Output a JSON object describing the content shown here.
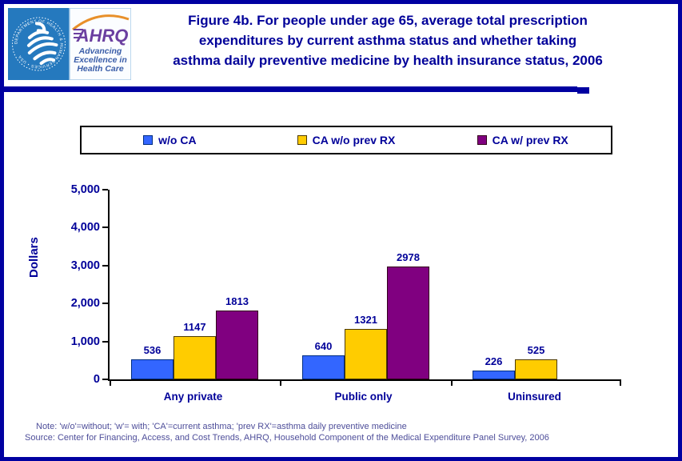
{
  "header": {
    "title_lines": [
      "Figure 4b. For people under age 65, average total prescription",
      "expenditures by current asthma status and whether taking",
      "asthma daily preventive medicine by health insurance status, 2006"
    ],
    "logo": {
      "hhs_seal_text": "DEPARTMENT OF HEALTH & HUMAN SERVICES • USA",
      "ahrq_acronym": "AHRQ",
      "tagline_lines": [
        "Advancing",
        "Excellence in",
        "Health Care"
      ]
    }
  },
  "chart_data": {
    "type": "bar",
    "categories": [
      "Any private",
      "Public only",
      "Uninsured"
    ],
    "series": [
      {
        "name": "w/o CA",
        "color": "#3366FF",
        "border": "#002D80",
        "values": [
          536,
          640,
          226
        ]
      },
      {
        "name": "CA w/o prev RX",
        "color": "#FFCC00",
        "border": "#4D3A00",
        "values": [
          1147,
          1321,
          525
        ]
      },
      {
        "name": "CA w/ prev RX",
        "color": "#800080",
        "border": "#33001A",
        "values": [
          1813,
          2978,
          null
        ]
      }
    ],
    "ylabel": "Dollars",
    "xlabel": "",
    "ylim": [
      0,
      5000
    ],
    "yticks": {
      "values": [
        0,
        1000,
        2000,
        3000,
        4000,
        5000
      ],
      "labels": [
        "0",
        "1,000",
        "2,000",
        "3,000",
        "4,000",
        "5,000"
      ]
    },
    "grid": false,
    "legend_position": "top",
    "data_labels": true
  },
  "footer": {
    "note": "Note: 'w/o'=without; 'w'= with; 'CA'=current asthma; 'prev RX'=asthma daily preventive medicine",
    "source": "Source: Center for Financing, Access, and Cost Trends, AHRQ, Household Component of the Medical Expenditure Panel Survey, 2006"
  },
  "colors": {
    "accent_navy": "#000099",
    "frame_and_divider": "#0000A1",
    "note_text": "#4d4d99",
    "hhs_blue": "#2579BE",
    "ahrq_purple": "#6B3FA0",
    "arc_orange": "#E8902A",
    "tagline_blue": "#3A5DA8"
  }
}
